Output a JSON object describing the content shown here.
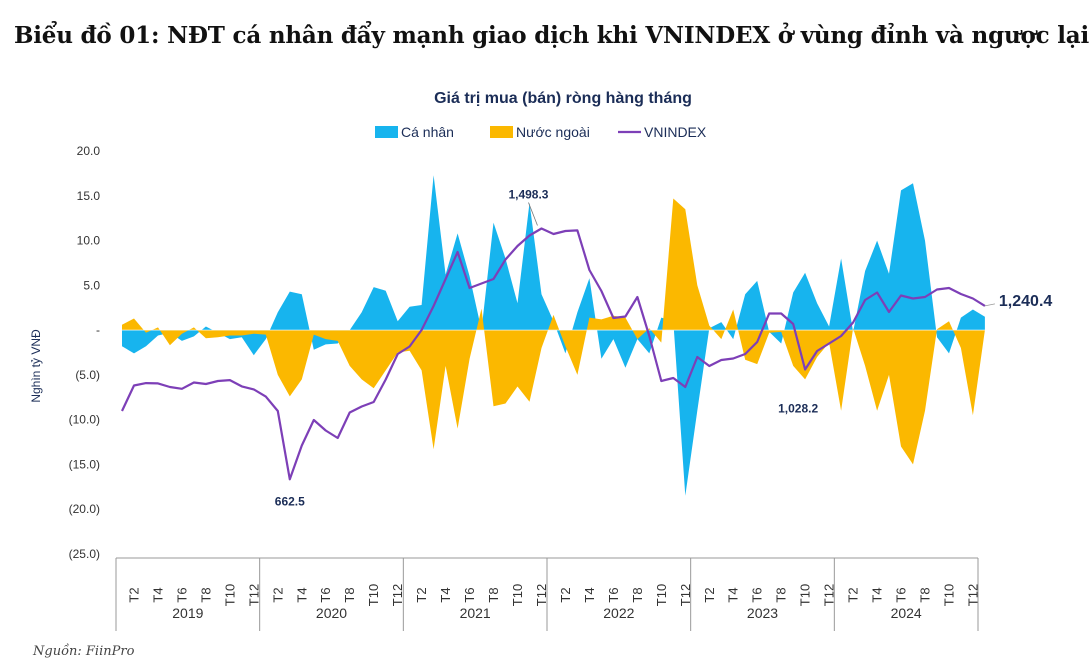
{
  "page": {
    "title": "Biểu đồ 01: NĐT cá nhân đẩy mạnh giao dịch khi VNINDEX ở vùng đỉnh và ngược lại",
    "source": "Nguồn: FiinPro"
  },
  "colors": {
    "individual": "#17b4ee",
    "foreign": "#fbb800",
    "vnindex": "#7d3fb7",
    "axis": "#1b2d57"
  },
  "chart_data": {
    "type": "area",
    "title": "Giá trị mua (bán) ròng hàng tháng",
    "ylabel": "Nghìn tỷ VNĐ",
    "ylim": [
      -25,
      20
    ],
    "y_ticks": [
      "20.0",
      "15.0",
      "10.0",
      "5.0",
      "-",
      "(5.0)",
      "(10.0)",
      "(15.0)",
      "(20.0)",
      "(25.0)"
    ],
    "legend_position": "top",
    "x_tick_labels": [
      "T2",
      "T4",
      "T6",
      "T8",
      "T10",
      "T12"
    ],
    "years": [
      "2019",
      "2020",
      "2021",
      "2022",
      "2023",
      "2024"
    ],
    "series": [
      {
        "name": "Cá nhân",
        "type": "area",
        "values": [
          -1.8,
          -2.6,
          -1.8,
          -0.6,
          -0.3,
          -1.2,
          -0.7,
          0.4,
          -0.3,
          -1.0,
          -0.8,
          -2.8,
          -1.0,
          2.0,
          4.3,
          4.0,
          -2.2,
          -1.6,
          -1.5,
          0.0,
          2.0,
          4.8,
          4.4,
          1.0,
          2.6,
          2.8,
          17.3,
          6.2,
          10.8,
          6.0,
          0.0,
          12.0,
          8.0,
          3.0,
          14.2,
          4.0,
          1.0,
          -2.6,
          2.0,
          5.8,
          -3.2,
          -1.0,
          -4.2,
          -1.0,
          -2.6,
          1.4,
          1.0,
          -18.5,
          -9.0,
          0.2,
          0.9,
          -1.0,
          4.0,
          5.5,
          -0.2,
          -1.5,
          4.2,
          6.4,
          3.0,
          0.4,
          8.0,
          -0.2,
          6.6,
          10.0,
          6.3,
          15.6,
          16.4,
          10.0,
          -0.8,
          -2.6,
          1.4,
          2.3,
          1.5
        ]
      },
      {
        "name": "Nước ngoài",
        "type": "area",
        "values": [
          0.6,
          1.3,
          -0.3,
          0.3,
          -1.7,
          -0.4,
          0.3,
          -0.9,
          -0.8,
          -0.6,
          -0.6,
          -0.4,
          -0.5,
          -5.0,
          -7.4,
          -5.5,
          -0.5,
          -1.0,
          -1.2,
          -4.0,
          -5.5,
          -6.5,
          -4.5,
          -2.5,
          -2.3,
          -4.5,
          -13.3,
          -4.0,
          -11.0,
          -3.2,
          2.4,
          -8.5,
          -8.2,
          -6.3,
          -8.0,
          -2.0,
          1.7,
          -1.8,
          -5.0,
          1.4,
          1.2,
          1.6,
          1.4,
          -1.0,
          0.2,
          -1.4,
          14.7,
          13.5,
          5.0,
          0.5,
          -1.0,
          2.3,
          -3.3,
          -3.8,
          -0.3,
          -0.2,
          -4.0,
          -5.5,
          -3.0,
          -1.4,
          -9.0,
          0.2,
          -4.0,
          -9.0,
          -5.0,
          -13.0,
          -15.0,
          -9.0,
          0.1,
          1.0,
          -2.0,
          -9.5,
          0.0
        ]
      },
      {
        "name": "VNINDEX",
        "type": "line",
        "values": [
          890,
          975,
          983,
          982,
          970,
          964,
          985,
          980,
          990,
          993,
          972,
          962,
          938,
          890,
          662.5,
          775,
          860,
          825,
          800,
          885,
          905,
          920,
          995,
          1080,
          1105,
          1160,
          1240,
          1330,
          1420,
          1300,
          1315,
          1330,
          1395,
          1440,
          1475,
          1498.3,
          1480,
          1490,
          1492,
          1360,
          1290,
          1200,
          1205,
          1270,
          1140,
          990,
          1000,
          970,
          1070,
          1040,
          1060,
          1065,
          1080,
          1120,
          1215,
          1215,
          1180,
          1028.2,
          1090,
          1115,
          1140,
          1185,
          1260,
          1285,
          1220,
          1275,
          1265,
          1270,
          1295,
          1300,
          1280,
          1265,
          1240.4
        ]
      }
    ],
    "annotations": [
      {
        "label": "662.5",
        "series": "VNINDEX",
        "index": 14
      },
      {
        "label": "1,498.3",
        "series": "VNINDEX",
        "index": 35
      },
      {
        "label": "1,028.2",
        "series": "VNINDEX",
        "index": 57
      },
      {
        "label": "1,240.4",
        "series": "VNINDEX",
        "index": 72
      }
    ]
  }
}
